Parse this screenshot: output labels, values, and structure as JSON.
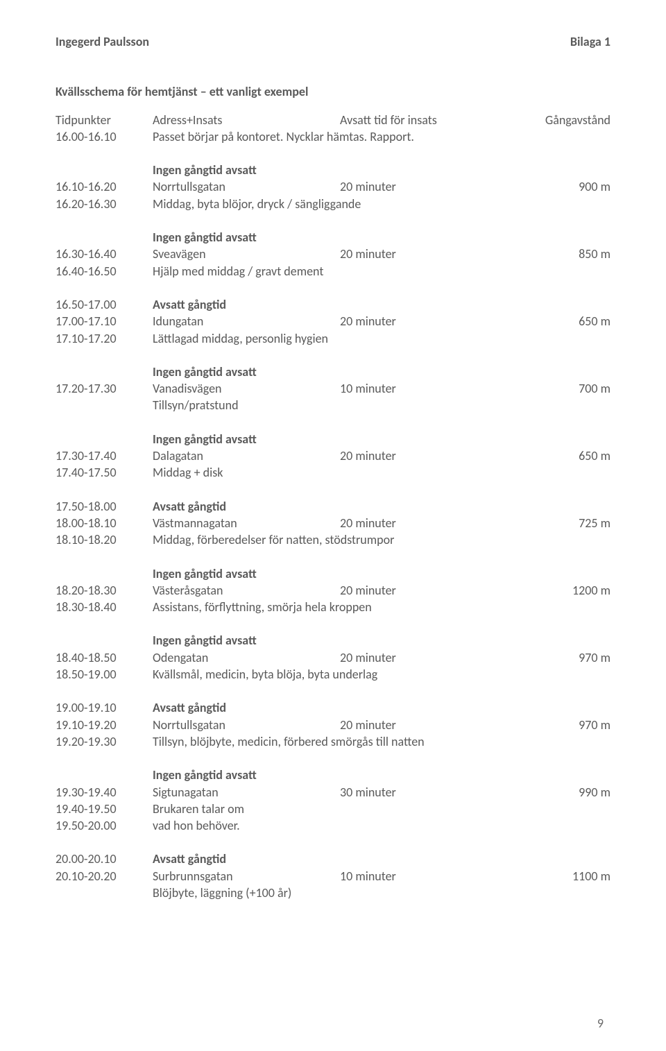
{
  "header": {
    "author": "Ingegerd Paulsson",
    "attachment": "Bilaga 1"
  },
  "subtitle": "Kvällsschema för hemtjänst – ett vanligt exempel",
  "columns": {
    "time": "Tidpunkter",
    "addr": "Adress+Insats",
    "dur": "Avsatt tid för insats",
    "dist": "Gångavstånd"
  },
  "labels": {
    "noWalk": "Ingen gångtid avsatt",
    "allocWalk": "Avsatt gångtid"
  },
  "r": {
    "t1600": "16.00-16.10",
    "a1600": "Passet börjar på kontoret. Nycklar hämtas. Rapport.",
    "t1610": "16.10-16.20",
    "a1610": "Norrtullsgatan",
    "d1610": "20 minuter",
    "m1610": "900 m",
    "t1620": "16.20-16.30",
    "a1620": "Middag, byta blöjor, dryck / sängliggande",
    "t1630": "16.30-16.40",
    "a1630": "Sveavägen",
    "d1630": "20 minuter",
    "m1630": "850 m",
    "t1640": "16.40-16.50",
    "a1640": "Hjälp med middag / gravt dement",
    "t1650": "16.50-17.00",
    "t1700": "17.00-17.10",
    "a1700": "Idungatan",
    "d1700": "20 minuter",
    "m1700": "650 m",
    "t1710": "17.10-17.20",
    "a1710": "Lättlagad middag, personlig hygien",
    "t1720": "17.20-17.30",
    "a1720": "Vanadisvägen",
    "d1720": "10 minuter",
    "m1720": "700 m",
    "a1720b": "Tillsyn/pratstund",
    "t1730": "17.30-17.40",
    "a1730": "Dalagatan",
    "d1730": "20 minuter",
    "m1730": "650 m",
    "t1740": "17.40-17.50",
    "a1740": "Middag + disk",
    "t1750": "17.50-18.00",
    "t1800": "18.00-18.10",
    "a1800": "Västmannagatan",
    "d1800": "20 minuter",
    "m1800": "725 m",
    "t1810": "18.10-18.20",
    "a1810": "Middag, förberedelser för natten, stödstrumpor",
    "t1820": "18.20-18.30",
    "a1820": "Västeråsgatan",
    "d1820": "20 minuter",
    "m1820": "1200 m",
    "t1830": "18.30-18.40",
    "a1830": "Assistans, förflyttning, smörja hela kroppen",
    "t1840": "18.40-18.50",
    "a1840": "Odengatan",
    "d1840": "20 minuter",
    "m1840": "970 m",
    "t1850": "18.50-19.00",
    "a1850": "Kvällsmål, medicin, byta blöja, byta underlag",
    "t1900": "19.00-19.10",
    "t1910": "19.10-19.20",
    "a1910": "Norrtullsgatan",
    "d1910": "20 minuter",
    "m1910": "970 m",
    "t1920": "19.20-19.30",
    "a1920": "Tillsyn, blöjbyte, medicin, förbered smörgås till natten",
    "t1930": "19.30-19.40",
    "a1930": "Sigtunagatan",
    "d1930": "30 minuter",
    "m1930": "990 m",
    "t1940": "19.40-19.50",
    "a1940": "Brukaren talar om",
    "t1950": "19.50-20.00",
    "a1950": "vad hon behöver.",
    "t2000": "20.00-20.10",
    "t2010": "20.10-20.20",
    "a2010": "Surbrunnsgatan",
    "d2010": "10 minuter",
    "m2010": "1100 m",
    "a2010b": "Blöjbyte, läggning (+100 år)"
  },
  "pageNumber": "9"
}
